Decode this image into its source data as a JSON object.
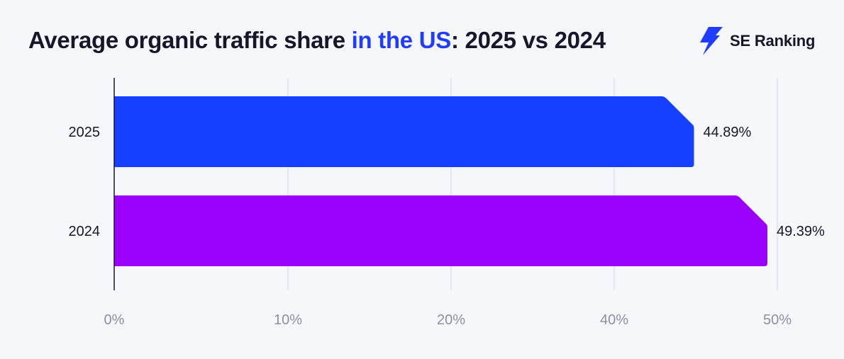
{
  "header": {
    "title_part1": "Average organic traffic share ",
    "title_highlight": "in the US",
    "title_part2": ": 2025 vs 2024",
    "brand_name": "SE Ranking",
    "brand_icon": "lightning-bolt-icon"
  },
  "colors": {
    "accent": "#1f3cff",
    "bar_2025": "#1640ff",
    "bar_2024": "#9b00ff",
    "grid": "#dfe2ec",
    "axis": "#15172b"
  },
  "chart_data": {
    "type": "bar",
    "orientation": "horizontal",
    "title": "Average organic traffic share in the US: 2025 vs 2024",
    "xlabel": "",
    "ylabel": "",
    "categories": [
      "2025",
      "2024"
    ],
    "values": [
      44.89,
      49.39
    ],
    "value_labels": [
      "44.89%",
      "49.39%"
    ],
    "x_ticks": [
      0,
      10,
      20,
      40,
      50
    ],
    "x_tick_labels": [
      "0%",
      "10%",
      "20%",
      "40%",
      "50%"
    ],
    "grid": true,
    "legend": "none"
  }
}
